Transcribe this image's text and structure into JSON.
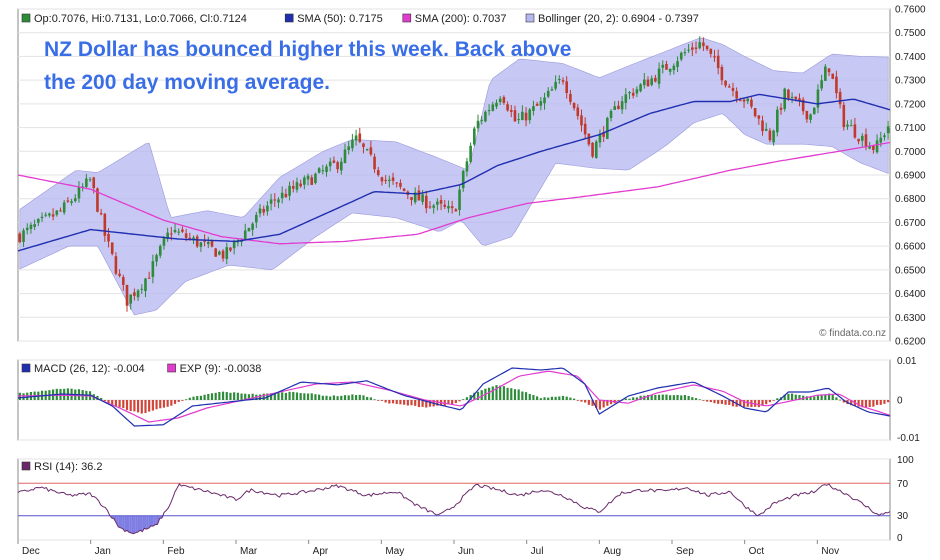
{
  "colors": {
    "up": "#2e8b3a",
    "down": "#c0392b",
    "sma50": "#1f2fb0",
    "sma200": "#e23ccf",
    "bollinger": "#b6b6f0",
    "macd": "#1f2fb0",
    "exp": "#e23ccf",
    "hist_pos": "#2e8b3a",
    "hist_neg": "#d0443a",
    "rsi": "#6a2a6a",
    "rsi_fill": "#6666dd",
    "rsi_over": "#e06666",
    "grid": "#e3e3e3"
  },
  "headline": {
    "line1": "NZ Dollar has bounced higher this week. Back above",
    "line2": "the 200 day moving average."
  },
  "watermark": "© findata.co.nz",
  "legends": {
    "price": [
      {
        "swatch": "#2e8b3a",
        "text": "Op:0.7076, Hi:0.7131, Lo:0.7066, Cl:0.7124"
      },
      {
        "swatch": "#1f2fb0",
        "text": "SMA (50): 0.7175"
      },
      {
        "swatch": "#e23ccf",
        "text": "SMA (200): 0.7037"
      },
      {
        "swatch": "#b6b6f0",
        "text": "Bollinger (20, 2): 0.6904 - 0.7397"
      }
    ],
    "macd": [
      {
        "swatch": "#1f2fb0",
        "text": "MACD (26, 12): -0.004"
      },
      {
        "swatch": "#e23ccf",
        "text": "EXP (9): -0.0038"
      }
    ],
    "rsi": [
      {
        "swatch": "#6a2a6a",
        "text": "RSI (14): 36.2"
      }
    ]
  },
  "chart_data": [
    {
      "type": "candlestick",
      "title": "",
      "x_labels": [
        "Dec",
        "Jan",
        "Feb",
        "Mar",
        "Apr",
        "May",
        "Jun",
        "Jul",
        "Aug",
        "Sep",
        "Oct",
        "Nov"
      ],
      "y_ticks": [
        "0.6200",
        "0.6300",
        "0.6400",
        "0.6500",
        "0.6600",
        "0.6700",
        "0.6800",
        "0.6900",
        "0.7000",
        "0.7100",
        "0.7200",
        "0.7300",
        "0.7400",
        "0.7500",
        "0.7600"
      ],
      "ylim": [
        0.62,
        0.76
      ],
      "grid": true,
      "x_range": [
        0,
        12
      ],
      "close_keypoints": [
        [
          0,
          0.664
        ],
        [
          0.6,
          0.675
        ],
        [
          1,
          0.688
        ],
        [
          1.2,
          0.664
        ],
        [
          1.5,
          0.637
        ],
        [
          1.8,
          0.648
        ],
        [
          2.1,
          0.667
        ],
        [
          2.5,
          0.661
        ],
        [
          2.85,
          0.656
        ],
        [
          3.2,
          0.669
        ],
        [
          3.5,
          0.679
        ],
        [
          3.9,
          0.686
        ],
        [
          4.4,
          0.695
        ],
        [
          4.65,
          0.705
        ],
        [
          5.05,
          0.688
        ],
        [
          5.5,
          0.68
        ],
        [
          6.0,
          0.674
        ],
        [
          6.3,
          0.711
        ],
        [
          6.65,
          0.725
        ],
        [
          6.85,
          0.712
        ],
        [
          7.2,
          0.72
        ],
        [
          7.5,
          0.731
        ],
        [
          7.9,
          0.7
        ],
        [
          8.3,
          0.722
        ],
        [
          8.7,
          0.73
        ],
        [
          9.1,
          0.74
        ],
        [
          9.4,
          0.746
        ],
        [
          9.8,
          0.727
        ],
        [
          10.0,
          0.722
        ],
        [
          10.35,
          0.706
        ],
        [
          10.55,
          0.724
        ],
        [
          10.9,
          0.715
        ],
        [
          11.15,
          0.737
        ],
        [
          11.35,
          0.713
        ],
        [
          11.6,
          0.706
        ],
        [
          11.8,
          0.701
        ],
        [
          12.0,
          0.7124
        ]
      ],
      "sma50_keypoints": [
        [
          0,
          0.658
        ],
        [
          1,
          0.667
        ],
        [
          1.6,
          0.665
        ],
        [
          2.2,
          0.663
        ],
        [
          3.0,
          0.662
        ],
        [
          3.6,
          0.665
        ],
        [
          4.4,
          0.676
        ],
        [
          4.9,
          0.683
        ],
        [
          5.5,
          0.682
        ],
        [
          6.1,
          0.686
        ],
        [
          6.6,
          0.694
        ],
        [
          7.2,
          0.7
        ],
        [
          8.0,
          0.707
        ],
        [
          8.7,
          0.716
        ],
        [
          9.3,
          0.721
        ],
        [
          9.8,
          0.721
        ],
        [
          10.2,
          0.724
        ],
        [
          10.6,
          0.722
        ],
        [
          11.0,
          0.72
        ],
        [
          11.5,
          0.722
        ],
        [
          12.0,
          0.7175
        ]
      ],
      "sma200_keypoints": [
        [
          0,
          0.69
        ],
        [
          1,
          0.684
        ],
        [
          2,
          0.671
        ],
        [
          2.8,
          0.664
        ],
        [
          3.6,
          0.661
        ],
        [
          4.5,
          0.662
        ],
        [
          5.5,
          0.665
        ],
        [
          6.2,
          0.672
        ],
        [
          7.0,
          0.678
        ],
        [
          7.8,
          0.681
        ],
        [
          8.8,
          0.685
        ],
        [
          9.8,
          0.692
        ],
        [
          10.5,
          0.696
        ],
        [
          11.3,
          0.7
        ],
        [
          12.0,
          0.7037
        ]
      ],
      "bollinger_upper": [
        [
          0,
          0.675
        ],
        [
          0.8,
          0.692
        ],
        [
          1.1,
          0.691
        ],
        [
          1.8,
          0.704
        ],
        [
          2.1,
          0.672
        ],
        [
          2.6,
          0.675
        ],
        [
          3.1,
          0.672
        ],
        [
          3.6,
          0.689
        ],
        [
          4.2,
          0.7
        ],
        [
          4.6,
          0.705
        ],
        [
          5.2,
          0.704
        ],
        [
          5.8,
          0.697
        ],
        [
          6.2,
          0.692
        ],
        [
          6.5,
          0.73
        ],
        [
          6.9,
          0.739
        ],
        [
          7.5,
          0.737
        ],
        [
          8.0,
          0.731
        ],
        [
          8.4,
          0.736
        ],
        [
          8.9,
          0.742
        ],
        [
          9.4,
          0.748
        ],
        [
          9.7,
          0.745
        ],
        [
          10.0,
          0.74
        ],
        [
          10.4,
          0.734
        ],
        [
          10.8,
          0.733
        ],
        [
          11.2,
          0.741
        ],
        [
          11.6,
          0.74
        ],
        [
          12.0,
          0.7397
        ]
      ],
      "bollinger_lower": [
        [
          0,
          0.65
        ],
        [
          0.7,
          0.66
        ],
        [
          1.1,
          0.66
        ],
        [
          1.6,
          0.631
        ],
        [
          1.9,
          0.633
        ],
        [
          2.3,
          0.645
        ],
        [
          2.9,
          0.652
        ],
        [
          3.5,
          0.65
        ],
        [
          4.1,
          0.664
        ],
        [
          4.6,
          0.674
        ],
        [
          5.2,
          0.672
        ],
        [
          5.8,
          0.666
        ],
        [
          6.1,
          0.671
        ],
        [
          6.4,
          0.66
        ],
        [
          6.8,
          0.664
        ],
        [
          7.4,
          0.695
        ],
        [
          7.9,
          0.693
        ],
        [
          8.4,
          0.692
        ],
        [
          8.9,
          0.702
        ],
        [
          9.3,
          0.712
        ],
        [
          9.7,
          0.716
        ],
        [
          10.0,
          0.707
        ],
        [
          10.3,
          0.703
        ],
        [
          10.8,
          0.703
        ],
        [
          11.2,
          0.702
        ],
        [
          11.6,
          0.695
        ],
        [
          12.0,
          0.6904
        ]
      ]
    },
    {
      "type": "line",
      "title": "",
      "y_ticks": [
        "0.01",
        "0",
        "-0.01"
      ],
      "ylim": [
        -0.01,
        0.01
      ],
      "hist_ylim": [
        -0.004,
        0.004
      ],
      "x_range": [
        0,
        12
      ],
      "macd_keypoints": [
        [
          0,
          0.0005
        ],
        [
          0.6,
          0.0015
        ],
        [
          1.0,
          0.0012
        ],
        [
          1.3,
          -0.0015
        ],
        [
          1.6,
          -0.0065
        ],
        [
          2.0,
          -0.0062
        ],
        [
          2.4,
          -0.0015
        ],
        [
          2.9,
          -0.0005
        ],
        [
          3.4,
          0.0005
        ],
        [
          3.9,
          0.0045
        ],
        [
          4.4,
          0.0038
        ],
        [
          4.8,
          0.0048
        ],
        [
          5.3,
          0.0012
        ],
        [
          5.8,
          -0.0012
        ],
        [
          6.1,
          -0.0025
        ],
        [
          6.4,
          0.004
        ],
        [
          6.8,
          0.008
        ],
        [
          7.2,
          0.0075
        ],
        [
          7.5,
          0.008
        ],
        [
          7.8,
          0.004
        ],
        [
          8.0,
          -0.0035
        ],
        [
          8.4,
          0.001
        ],
        [
          8.8,
          0.003
        ],
        [
          9.3,
          0.0045
        ],
        [
          9.7,
          0.001
        ],
        [
          10.0,
          -0.002
        ],
        [
          10.3,
          -0.003
        ],
        [
          10.6,
          0.002
        ],
        [
          10.9,
          0.002
        ],
        [
          11.15,
          0.003
        ],
        [
          11.4,
          -0.0005
        ],
        [
          11.7,
          -0.003
        ],
        [
          12.0,
          -0.004
        ]
      ],
      "exp_keypoints": [
        [
          0,
          0.001
        ],
        [
          0.6,
          0.0012
        ],
        [
          1.0,
          0.001
        ],
        [
          1.4,
          -0.002
        ],
        [
          1.8,
          -0.0055
        ],
        [
          2.2,
          -0.0045
        ],
        [
          2.6,
          -0.002
        ],
        [
          3.1,
          0.0
        ],
        [
          3.6,
          0.002
        ],
        [
          4.1,
          0.004
        ],
        [
          4.6,
          0.0045
        ],
        [
          5.1,
          0.0025
        ],
        [
          5.6,
          0.0
        ],
        [
          6.1,
          -0.0015
        ],
        [
          6.5,
          0.002
        ],
        [
          6.9,
          0.006
        ],
        [
          7.3,
          0.0072
        ],
        [
          7.7,
          0.006
        ],
        [
          8.0,
          0.0
        ],
        [
          8.4,
          -0.0008
        ],
        [
          8.8,
          0.0018
        ],
        [
          9.3,
          0.0038
        ],
        [
          9.7,
          0.0022
        ],
        [
          10.0,
          -0.0005
        ],
        [
          10.3,
          -0.0015
        ],
        [
          10.7,
          0.0
        ],
        [
          11.0,
          0.0012
        ],
        [
          11.3,
          0.0015
        ],
        [
          11.6,
          -0.0015
        ],
        [
          12.0,
          -0.0038
        ]
      ],
      "hist_keypoints": [
        [
          0,
          0.0012
        ],
        [
          0.7,
          0.0022
        ],
        [
          1.0,
          0.0015
        ],
        [
          1.3,
          -0.001
        ],
        [
          1.7,
          -0.0025
        ],
        [
          2.1,
          -0.001
        ],
        [
          2.4,
          0.0005
        ],
        [
          2.8,
          0.0015
        ],
        [
          3.3,
          0.001
        ],
        [
          3.8,
          0.0015
        ],
        [
          4.3,
          0.0007
        ],
        [
          4.7,
          0.001
        ],
        [
          5.1,
          -0.0006
        ],
        [
          5.6,
          -0.0013
        ],
        [
          6.0,
          -0.0008
        ],
        [
          6.3,
          0.0014
        ],
        [
          6.6,
          0.0027
        ],
        [
          6.9,
          0.0018
        ],
        [
          7.2,
          0.0004
        ],
        [
          7.5,
          0.0008
        ],
        [
          7.8,
          -0.0004
        ],
        [
          8.0,
          -0.0018
        ],
        [
          8.3,
          0.0
        ],
        [
          8.7,
          0.001
        ],
        [
          9.2,
          0.0008
        ],
        [
          9.6,
          -0.0006
        ],
        [
          9.9,
          -0.0012
        ],
        [
          10.2,
          -0.0013
        ],
        [
          10.6,
          0.0012
        ],
        [
          10.9,
          0.0006
        ],
        [
          11.2,
          0.0012
        ],
        [
          11.4,
          -0.0008
        ],
        [
          11.7,
          -0.0014
        ],
        [
          12.0,
          -0.0004
        ]
      ]
    },
    {
      "type": "line",
      "title": "",
      "y_ticks": [
        "100",
        "70",
        "30",
        "0"
      ],
      "ylim": [
        0,
        100
      ],
      "thresholds": [
        30,
        70
      ],
      "x_range": [
        0,
        12
      ],
      "rsi_keypoints": [
        [
          0,
          58
        ],
        [
          0.3,
          65
        ],
        [
          0.7,
          55
        ],
        [
          1.0,
          57
        ],
        [
          1.2,
          40
        ],
        [
          1.4,
          15
        ],
        [
          1.6,
          8
        ],
        [
          1.9,
          18
        ],
        [
          2.1,
          45
        ],
        [
          2.2,
          68
        ],
        [
          2.6,
          60
        ],
        [
          3.0,
          50
        ],
        [
          3.2,
          62
        ],
        [
          3.6,
          55
        ],
        [
          4.0,
          60
        ],
        [
          4.4,
          67
        ],
        [
          4.8,
          55
        ],
        [
          5.2,
          60
        ],
        [
          5.5,
          42
        ],
        [
          5.8,
          30
        ],
        [
          6.0,
          42
        ],
        [
          6.3,
          68
        ],
        [
          6.6,
          62
        ],
        [
          6.9,
          55
        ],
        [
          7.2,
          62
        ],
        [
          7.5,
          55
        ],
        [
          7.8,
          40
        ],
        [
          8.0,
          35
        ],
        [
          8.3,
          58
        ],
        [
          8.6,
          62
        ],
        [
          8.9,
          60
        ],
        [
          9.2,
          65
        ],
        [
          9.5,
          55
        ],
        [
          9.8,
          60
        ],
        [
          10.0,
          42
        ],
        [
          10.2,
          30
        ],
        [
          10.4,
          45
        ],
        [
          10.7,
          55
        ],
        [
          11.0,
          60
        ],
        [
          11.1,
          70
        ],
        [
          11.4,
          57
        ],
        [
          11.7,
          40
        ],
        [
          11.85,
          30
        ],
        [
          12.0,
          36
        ]
      ]
    }
  ],
  "rsi_labels": {
    "top": "100",
    "over": "70",
    "under": "30",
    "bottom": "0"
  }
}
